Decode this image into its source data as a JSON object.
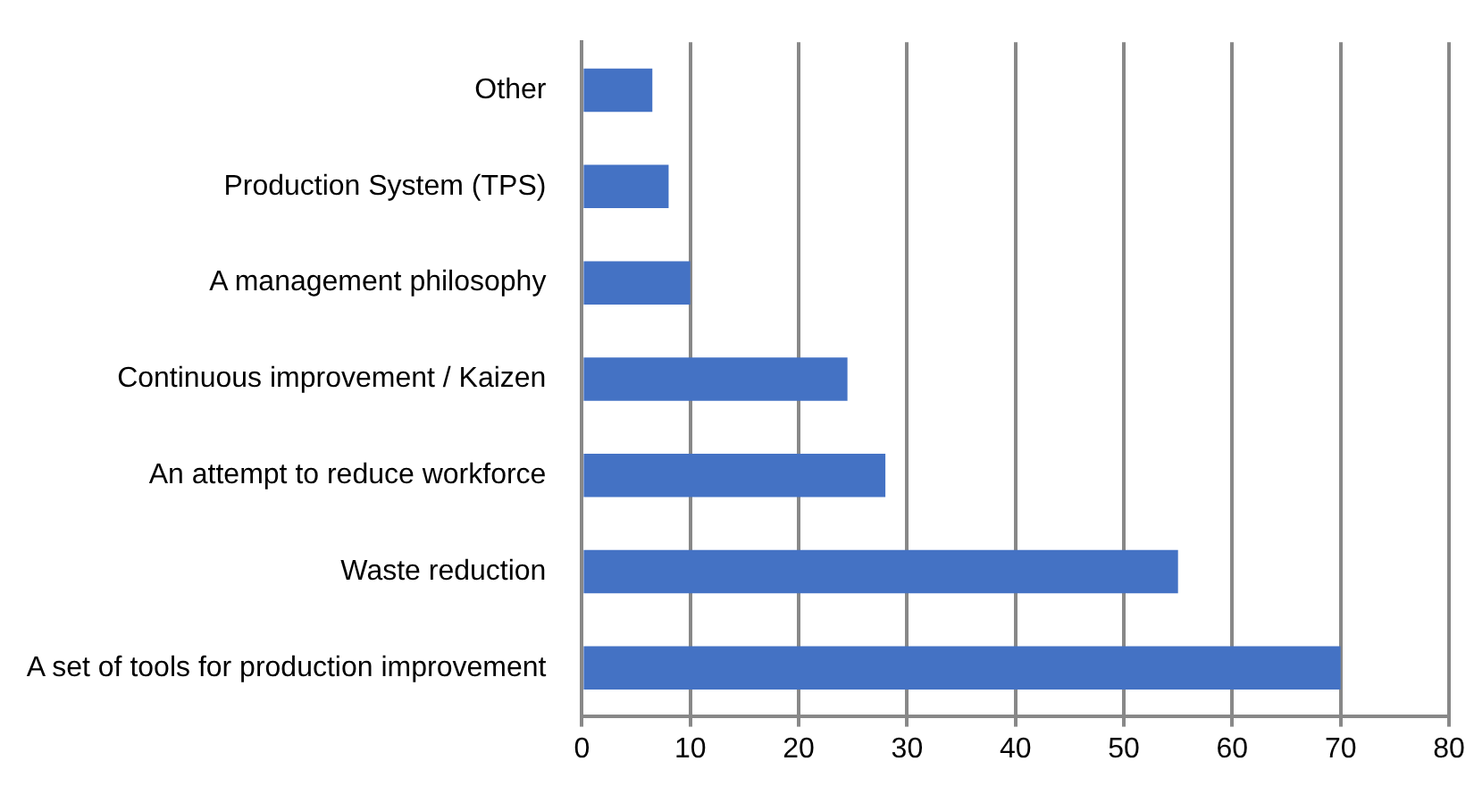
{
  "chart_data": {
    "type": "bar",
    "orientation": "horizontal",
    "categories": [
      "Other",
      "Production System (TPS)",
      "A management philosophy",
      "Continuous improvement / Kaizen",
      "An attempt to reduce workforce",
      "Waste reduction",
      "A set of tools for production improvement"
    ],
    "values": [
      6.5,
      8,
      10,
      24.5,
      28,
      55,
      70
    ],
    "color": "#4472c4",
    "xlim": [
      0,
      80
    ],
    "xticks": [
      0,
      10,
      20,
      30,
      40,
      50,
      60,
      70,
      80
    ],
    "grid": "x",
    "legend": false
  }
}
